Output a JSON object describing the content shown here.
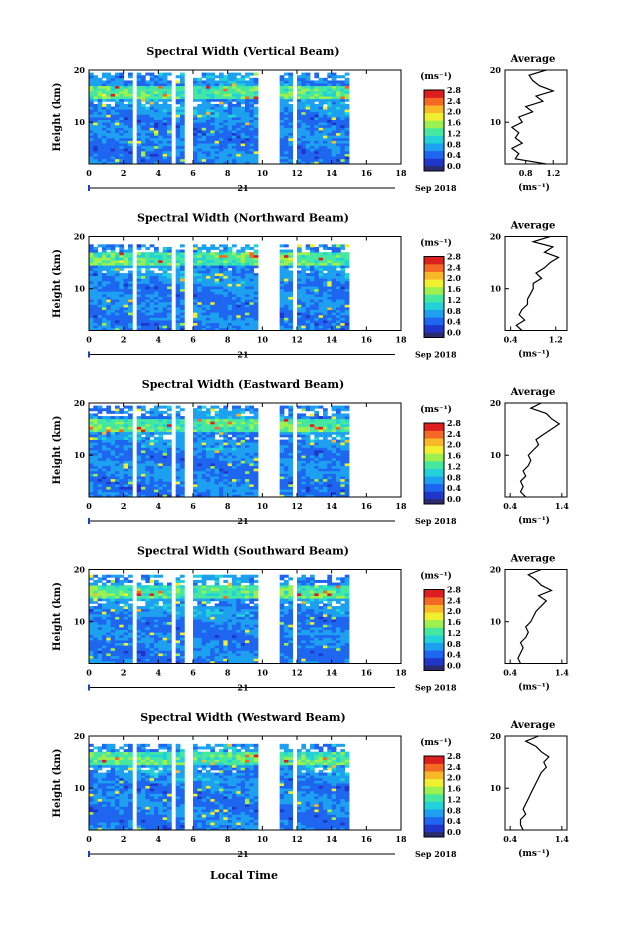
{
  "panel_labels": {
    "xlabel": "Local Time",
    "day": "21",
    "month": "Sep 2018",
    "ylabel": "Height (km)",
    "unit": "(ms⁻¹)",
    "avg_title": "Average",
    "avg_xlabel": "(ms⁻¹)"
  },
  "colormap": {
    "colors": [
      "#2a2a6e",
      "#1f36c8",
      "#1e66f0",
      "#1ea0f0",
      "#22d2d8",
      "#46e8a0",
      "#9cf050",
      "#f0f030",
      "#f8b828",
      "#f46a24",
      "#dc1e1e"
    ],
    "ticks": [
      "0.0",
      "0.4",
      "0.8",
      "1.2",
      "1.6",
      "2.0",
      "2.4",
      "2.8"
    ],
    "range": [
      0,
      2.8
    ]
  },
  "chart_data": [
    {
      "type": "heatmap",
      "title": "Spectral Width (Vertical Beam)",
      "x_ticks": [
        "0",
        "2",
        "4",
        "6",
        "8",
        "10",
        "12",
        "14",
        "16",
        "18"
      ],
      "y_ticks": [
        "20",
        "10"
      ],
      "xlim": [
        0,
        18
      ],
      "ylim": [
        2,
        20
      ],
      "data_top_km": 19.5,
      "data_end_hour": 15,
      "gaps": [
        [
          2.4,
          2.7
        ],
        [
          4.7,
          5.0
        ],
        [
          5.6,
          6.0
        ],
        [
          9.8,
          11.0
        ],
        [
          11.7,
          12.1
        ]
      ],
      "profile": {
        "x_ticks": [
          "0.8",
          "1.2"
        ],
        "xlim": [
          0.5,
          1.4
        ],
        "height": [
          2,
          3,
          4,
          5,
          6,
          7,
          8,
          9,
          10,
          11,
          12,
          13,
          14,
          15,
          16,
          17,
          18,
          19,
          20
        ],
        "value": [
          1.1,
          0.65,
          0.7,
          0.6,
          0.75,
          0.65,
          0.7,
          0.6,
          0.75,
          0.7,
          0.9,
          0.8,
          1.05,
          0.95,
          1.2,
          1.0,
          0.9,
          0.85,
          1.1
        ]
      }
    },
    {
      "type": "heatmap",
      "title": "Spectral Width (Northward Beam)",
      "x_ticks": [
        "0",
        "2",
        "4",
        "6",
        "8",
        "10",
        "12",
        "14",
        "16",
        "18"
      ],
      "y_ticks": [
        "20",
        "10"
      ],
      "xlim": [
        0,
        18
      ],
      "ylim": [
        2,
        20
      ],
      "data_top_km": 18.5,
      "data_end_hour": 15,
      "gaps": [
        [
          2.4,
          2.7
        ],
        [
          4.7,
          5.0
        ],
        [
          5.6,
          6.0
        ],
        [
          9.8,
          11.0
        ],
        [
          11.7,
          12.1
        ]
      ],
      "profile": {
        "x_ticks": [
          "0.4",
          "1.2"
        ],
        "xlim": [
          0.3,
          1.4
        ],
        "height": [
          2,
          3,
          4,
          5,
          6,
          7,
          8,
          9,
          10,
          11,
          12,
          13,
          14,
          15,
          16,
          17,
          18,
          19,
          20
        ],
        "value": [
          0.6,
          0.5,
          0.65,
          0.55,
          0.6,
          0.7,
          0.7,
          0.75,
          0.8,
          0.8,
          0.95,
          0.85,
          1.0,
          1.1,
          1.25,
          1.0,
          1.15,
          0.8,
          1.1
        ]
      }
    },
    {
      "type": "heatmap",
      "title": "Spectral Width (Eastward Beam)",
      "x_ticks": [
        "0",
        "2",
        "4",
        "6",
        "8",
        "10",
        "12",
        "14",
        "16",
        "18"
      ],
      "y_ticks": [
        "20",
        "10"
      ],
      "xlim": [
        0,
        18
      ],
      "ylim": [
        2,
        20
      ],
      "data_top_km": 19.2,
      "data_end_hour": 15,
      "gaps": [
        [
          2.4,
          2.7
        ],
        [
          4.7,
          5.0
        ],
        [
          5.6,
          6.0
        ],
        [
          9.8,
          11.0
        ],
        [
          11.7,
          12.1
        ]
      ],
      "profile": {
        "x_ticks": [
          "0.4",
          "1.4"
        ],
        "xlim": [
          0.3,
          1.5
        ],
        "height": [
          2,
          3,
          4,
          5,
          6,
          7,
          8,
          9,
          10,
          11,
          12,
          13,
          14,
          15,
          16,
          17,
          18,
          19,
          20
        ],
        "value": [
          0.7,
          0.6,
          0.65,
          0.6,
          0.7,
          0.65,
          0.75,
          0.8,
          0.75,
          0.85,
          0.95,
          0.9,
          1.05,
          1.2,
          1.35,
          1.2,
          1.1,
          0.8,
          1.0
        ]
      }
    },
    {
      "type": "heatmap",
      "title": "Spectral Width (Southward Beam)",
      "x_ticks": [
        "0",
        "2",
        "4",
        "6",
        "8",
        "10",
        "12",
        "14",
        "16",
        "18"
      ],
      "y_ticks": [
        "20",
        "10"
      ],
      "xlim": [
        0,
        18
      ],
      "ylim": [
        2,
        20
      ],
      "data_top_km": 18.8,
      "data_end_hour": 15,
      "gaps": [
        [
          2.4,
          2.7
        ],
        [
          4.7,
          5.0
        ],
        [
          5.6,
          6.0
        ],
        [
          9.8,
          11.0
        ],
        [
          11.7,
          12.1
        ]
      ],
      "profile": {
        "x_ticks": [
          "0.4",
          "1.4"
        ],
        "xlim": [
          0.3,
          1.5
        ],
        "height": [
          2,
          3,
          4,
          5,
          6,
          7,
          8,
          9,
          10,
          11,
          12,
          13,
          14,
          15,
          16,
          17,
          18,
          19,
          20
        ],
        "value": [
          0.6,
          0.55,
          0.6,
          0.65,
          0.6,
          0.7,
          0.75,
          0.7,
          0.8,
          0.85,
          0.9,
          1.0,
          1.1,
          0.95,
          1.2,
          1.0,
          0.9,
          0.75,
          1.0
        ]
      }
    },
    {
      "type": "heatmap",
      "title": "Spectral Width (Westward Beam)",
      "x_ticks": [
        "0",
        "2",
        "4",
        "6",
        "8",
        "10",
        "12",
        "14",
        "16",
        "18"
      ],
      "y_ticks": [
        "20",
        "10"
      ],
      "xlim": [
        0,
        18
      ],
      "ylim": [
        2,
        20
      ],
      "data_top_km": 18.5,
      "data_end_hour": 15,
      "gaps": [
        [
          2.4,
          2.7
        ],
        [
          4.7,
          5.0
        ],
        [
          5.6,
          6.0
        ],
        [
          9.8,
          11.0
        ],
        [
          11.7,
          12.1
        ]
      ],
      "profile": {
        "x_ticks": [
          "0.4",
          "1.4"
        ],
        "xlim": [
          0.3,
          1.5
        ],
        "height": [
          2,
          3,
          4,
          5,
          6,
          7,
          8,
          9,
          10,
          11,
          12,
          13,
          14,
          15,
          16,
          17,
          18,
          19,
          20
        ],
        "value": [
          0.65,
          0.6,
          0.6,
          0.7,
          0.65,
          0.7,
          0.75,
          0.8,
          0.85,
          0.9,
          0.95,
          1.0,
          1.1,
          1.05,
          1.15,
          1.0,
          0.9,
          0.7,
          0.95
        ]
      }
    }
  ]
}
